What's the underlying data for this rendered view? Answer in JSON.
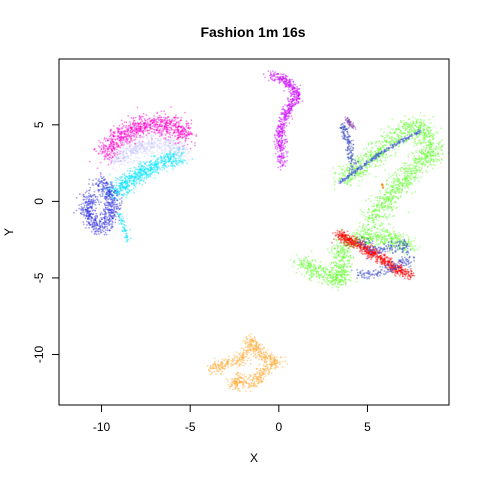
{
  "chart_data": {
    "type": "scatter",
    "title": "Fashion 1m 16s",
    "xlabel": "X",
    "ylabel": "Y",
    "xlim": [
      -12.4,
      9.6
    ],
    "ylim": [
      -13.3,
      9.3
    ],
    "grid": false,
    "legend": "none",
    "x_ticks": [
      -10,
      -5,
      0,
      5
    ],
    "y_ticks": [
      -10,
      -5,
      0,
      5
    ],
    "clusters": [
      {
        "color": "#ff00cc",
        "path": [
          [
            -9.8,
            3.0
          ],
          [
            -9.2,
            4.0
          ],
          [
            -8.4,
            4.6
          ],
          [
            -7.4,
            5.0
          ],
          [
            -6.4,
            5.1
          ],
          [
            -5.6,
            4.7
          ],
          [
            -5.3,
            4.2
          ]
        ],
        "width": 0.7,
        "n": 900
      },
      {
        "color": "#ccccff",
        "path": [
          [
            -9.2,
            2.6
          ],
          [
            -8.2,
            3.4
          ],
          [
            -7.0,
            3.8
          ],
          [
            -6.0,
            3.6
          ],
          [
            -5.4,
            3.2
          ]
        ],
        "width": 0.6,
        "n": 500
      },
      {
        "color": "#00e5ff",
        "path": [
          [
            -9.4,
            0.4
          ],
          [
            -8.6,
            1.2
          ],
          [
            -7.6,
            2.0
          ],
          [
            -6.6,
            2.5
          ],
          [
            -5.6,
            3.0
          ]
        ],
        "width": 0.55,
        "n": 650
      },
      {
        "color": "#00e5ff",
        "path": [
          [
            -9.0,
            -0.8
          ],
          [
            -8.7,
            -1.8
          ],
          [
            -8.5,
            -2.6
          ]
        ],
        "width": 0.15,
        "n": 60
      },
      {
        "color": "#3333dd",
        "path": [
          [
            -10.6,
            0.4
          ],
          [
            -10.8,
            -0.6
          ],
          [
            -10.4,
            -1.6
          ],
          [
            -9.8,
            -1.6
          ],
          [
            -9.4,
            -0.6
          ],
          [
            -9.6,
            0.6
          ],
          [
            -10.1,
            1.3
          ]
        ],
        "width": 0.5,
        "n": 650
      },
      {
        "color": "#cc00ff",
        "path": [
          [
            -0.6,
            8.2
          ],
          [
            0.3,
            8.0
          ],
          [
            1.1,
            7.0
          ],
          [
            0.6,
            6.2
          ],
          [
            0.3,
            5.4
          ],
          [
            0.1,
            4.4
          ],
          [
            0.1,
            3.2
          ],
          [
            0.2,
            2.4
          ]
        ],
        "width": 0.3,
        "n": 600
      },
      {
        "color": "#66ff33",
        "path": [
          [
            3.6,
            1.4
          ],
          [
            5.0,
            2.6
          ],
          [
            6.2,
            3.8
          ],
          [
            7.2,
            4.8
          ],
          [
            8.2,
            4.8
          ],
          [
            8.6,
            3.0
          ],
          [
            7.4,
            1.8
          ],
          [
            6.4,
            0.6
          ],
          [
            5.6,
            -0.8
          ],
          [
            5.0,
            -1.6
          ]
        ],
        "width": 0.7,
        "n": 1500
      },
      {
        "color": "#4455dd",
        "path": [
          [
            3.4,
            1.2
          ],
          [
            4.6,
            2.2
          ],
          [
            5.8,
            3.2
          ],
          [
            7.0,
            4.0
          ],
          [
            8.0,
            4.6
          ]
        ],
        "width": 0.12,
        "n": 250
      },
      {
        "color": "#3344bb",
        "path": [
          [
            3.6,
            5.0
          ],
          [
            4.0,
            3.6
          ],
          [
            4.2,
            2.0
          ]
        ],
        "width": 0.25,
        "n": 160
      },
      {
        "color": "#8844aa",
        "path": [
          [
            3.8,
            5.4
          ],
          [
            4.2,
            4.8
          ]
        ],
        "width": 0.15,
        "n": 60
      },
      {
        "color": "#ff8800",
        "path": [
          [
            5.8,
            1.2
          ],
          [
            5.9,
            0.8
          ]
        ],
        "width": 0.06,
        "n": 15
      },
      {
        "color": "#66ff33",
        "path": [
          [
            1.2,
            -4.0
          ],
          [
            2.2,
            -4.6
          ],
          [
            3.4,
            -5.2
          ],
          [
            3.6,
            -4.2
          ],
          [
            3.4,
            -3.0
          ],
          [
            4.2,
            -2.6
          ],
          [
            5.2,
            -2.3
          ],
          [
            6.4,
            -2.4
          ],
          [
            7.4,
            -3.0
          ]
        ],
        "width": 0.55,
        "n": 1000
      },
      {
        "color": "#ff0000",
        "path": [
          [
            3.4,
            -2.2
          ],
          [
            4.4,
            -2.8
          ],
          [
            5.6,
            -3.6
          ],
          [
            6.6,
            -4.4
          ],
          [
            7.4,
            -4.8
          ]
        ],
        "width": 0.35,
        "n": 700
      },
      {
        "color": "#3344cc",
        "path": [
          [
            4.6,
            -2.4
          ],
          [
            5.4,
            -3.2
          ],
          [
            6.2,
            -3.0
          ],
          [
            7.0,
            -2.8
          ],
          [
            7.4,
            -3.8
          ],
          [
            5.4,
            -4.8
          ],
          [
            4.4,
            -4.8
          ]
        ],
        "width": 0.35,
        "n": 320
      },
      {
        "color": "#ffaa33",
        "path": [
          [
            -3.8,
            -11.0
          ],
          [
            -3.0,
            -10.6
          ],
          [
            -2.2,
            -10.4
          ],
          [
            -1.7,
            -9.6
          ],
          [
            -1.6,
            -9.0
          ],
          [
            -1.0,
            -10.0
          ],
          [
            -0.2,
            -10.4
          ],
          [
            0.0,
            -10.5
          ],
          [
            -0.8,
            -11.0
          ],
          [
            -1.6,
            -12.0
          ],
          [
            -2.4,
            -11.6
          ],
          [
            -2.6,
            -12.2
          ]
        ],
        "width": 0.38,
        "n": 700
      }
    ]
  }
}
